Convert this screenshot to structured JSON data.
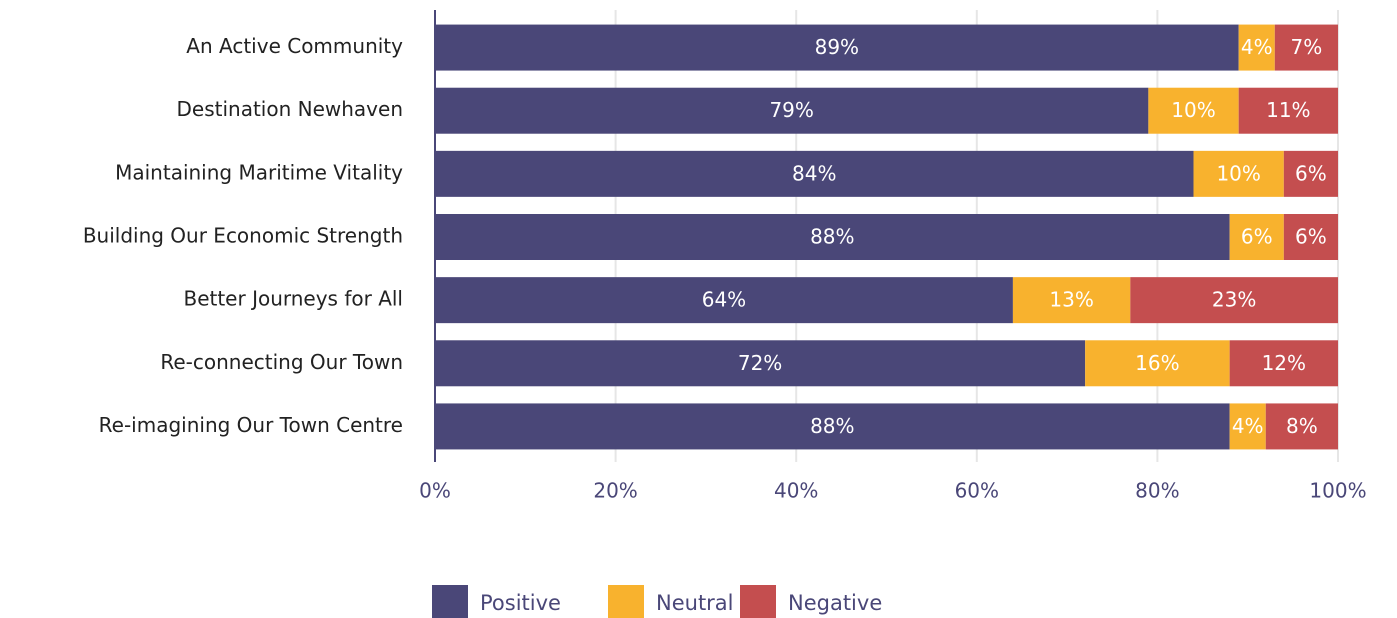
{
  "chart_data": {
    "type": "stacked-bar-horizontal",
    "categories": [
      "An Active Community",
      "Destination Newhaven",
      "Maintaining Maritime Vitality",
      "Building Our Economic Strength",
      "Better Journeys for All",
      "Re-connecting Our Town",
      "Re-imagining Our Town Centre"
    ],
    "series": [
      {
        "name": "Positive",
        "color": "#4a4778",
        "values": [
          89,
          79,
          84,
          88,
          64,
          72,
          88
        ],
        "value_labels": [
          "89%",
          "79%",
          "84%",
          "88%",
          "64%",
          "72%",
          "88%"
        ]
      },
      {
        "name": "Neutral",
        "color": "#f8b22e",
        "values": [
          4,
          10,
          10,
          6,
          13,
          16,
          4
        ],
        "value_labels": [
          "4%",
          "10%",
          "10%",
          "6%",
          "13%",
          "16%",
          "4%"
        ]
      },
      {
        "name": "Negative",
        "color": "#c44e4f",
        "values": [
          7,
          11,
          6,
          6,
          23,
          12,
          8
        ],
        "value_labels": [
          "7%",
          "11%",
          "6%",
          "6%",
          "23%",
          "12%",
          "8%"
        ]
      }
    ],
    "xlim": [
      0,
      100
    ],
    "xticks": [
      {
        "value": 0,
        "label": "0%"
      },
      {
        "value": 20,
        "label": "20%"
      },
      {
        "value": 40,
        "label": "40%"
      },
      {
        "value": 60,
        "label": "60%"
      },
      {
        "value": 80,
        "label": "80%"
      },
      {
        "value": 100,
        "label": "100%"
      }
    ],
    "grid": true,
    "legend": "bottom"
  }
}
